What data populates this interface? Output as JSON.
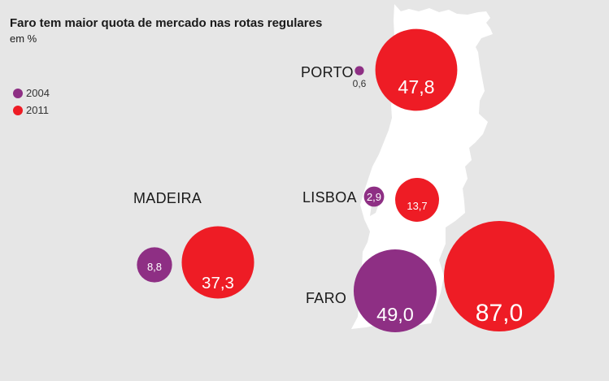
{
  "chart_data": {
    "type": "bubble",
    "title": "Faro tem maior quota de mercado nas rotas regulares",
    "subtitle": "em %",
    "legend": [
      {
        "key": "2004",
        "label": "2004",
        "color": "#8e2f84"
      },
      {
        "key": "2011",
        "label": "2011",
        "color": "#ee1c25"
      }
    ],
    "regions": [
      {
        "name": "PORTO",
        "values": {
          "2004": "0,6",
          "2011": "47,8"
        }
      },
      {
        "name": "LISBOA",
        "values": {
          "2004": "2,9",
          "2011": "13,7"
        }
      },
      {
        "name": "MADEIRA",
        "values": {
          "2004": "8,8",
          "2011": "37,3"
        }
      },
      {
        "name": "FARO",
        "values": {
          "2004": "49,0",
          "2011": "87,0"
        }
      }
    ],
    "values_numeric": {
      "PORTO": {
        "2004": 0.6,
        "2011": 47.8
      },
      "LISBOA": {
        "2004": 2.9,
        "2011": 13.7
      },
      "MADEIRA": {
        "2004": 8.8,
        "2011": 37.3
      },
      "FARO": {
        "2004": 49.0,
        "2011": 87.0
      }
    }
  },
  "colors": {
    "series_2004": "#8e2f84",
    "series_2011": "#ee1c25",
    "map_fill": "#ffffff",
    "background": "#e6e6e6"
  }
}
